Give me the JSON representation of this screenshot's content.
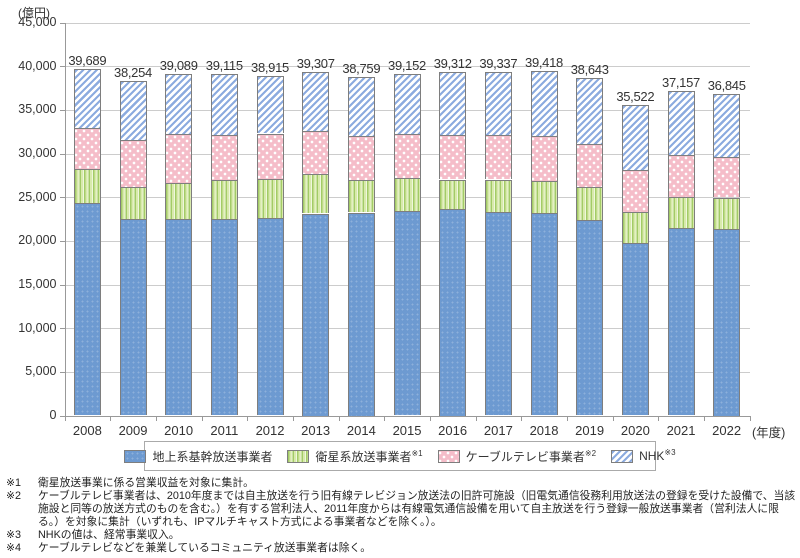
{
  "chart_data": {
    "type": "bar",
    "stacked": true,
    "y_unit_label": "(億円)",
    "x_unit_label": "(年度)",
    "ylim": [
      0,
      45000
    ],
    "ytick_interval": 5000,
    "ytick_labels": [
      "0",
      "5,000",
      "10,000",
      "15,000",
      "20,000",
      "25,000",
      "30,000",
      "35,000",
      "40,000",
      "45,000"
    ],
    "grid": "horizontal",
    "legend_position": "bottom",
    "categories": [
      "2008",
      "2009",
      "2010",
      "2011",
      "2012",
      "2013",
      "2014",
      "2015",
      "2016",
      "2017",
      "2018",
      "2019",
      "2020",
      "2021",
      "2022"
    ],
    "series": [
      {
        "key": "terrestrial",
        "name": "地上系基幹放送事業者",
        "values": [
          24290,
          22460,
          22540,
          22460,
          22580,
          23130,
          23245,
          23435,
          23705,
          23320,
          23210,
          22370,
          19775,
          21495,
          21415
        ]
      },
      {
        "key": "satellite",
        "name": "衛星系放送事業者※1",
        "values": [
          3920,
          3730,
          4110,
          4490,
          4460,
          4535,
          3700,
          3810,
          3315,
          3700,
          3660,
          3810,
          3545,
          3545,
          3545
        ]
      },
      {
        "key": "cable",
        "name": "ケーブルテレビ事業者※2",
        "values": [
          4725,
          5330,
          5560,
          5140,
          5240,
          4955,
          5030,
          4955,
          5110,
          5070,
          5105,
          4955,
          4840,
          4840,
          4650
        ]
      },
      {
        "key": "nhk",
        "name": "NHK※3",
        "values": [
          6754,
          6734,
          6879,
          7025,
          6635,
          6687,
          6784,
          6952,
          7182,
          7247,
          7443,
          7508,
          7362,
          7277,
          7235
        ]
      }
    ],
    "totals": [
      39689,
      38254,
      39089,
      39115,
      38915,
      39307,
      38759,
      39152,
      39312,
      39337,
      39418,
      38643,
      35522,
      37157,
      36845
    ],
    "total_labels": [
      "39,689",
      "38,254",
      "39,089",
      "39,115",
      "38,915",
      "39,307",
      "38,759",
      "39,152",
      "39,312",
      "39,337",
      "39,418",
      "38,643",
      "35,522",
      "37,157",
      "36,845"
    ]
  },
  "colors": {
    "terrestrial": "#6d9ad1",
    "satellite_stripe": "#a3cb66",
    "satellite_bg": "#d8eaac",
    "cable": "#f5bdc9",
    "nhk_stripe": "#8cabdf",
    "segment_border": "#7e7e7e",
    "gridline": "#cccccc",
    "axis": "#999999",
    "text": "#333333"
  },
  "legend": {
    "items": [
      {
        "label": "地上系基幹放送事業者",
        "sup": ""
      },
      {
        "label": "衛星系放送事業者",
        "sup": "※1"
      },
      {
        "label": "ケーブルテレビ事業者",
        "sup": "※2"
      },
      {
        "label": "NHK",
        "sup": "※3"
      }
    ]
  },
  "footnotes": {
    "items": [
      {
        "marker": "※1",
        "text": "衛星放送事業に係る営業収益を対象に集計。"
      },
      {
        "marker": "※2",
        "text": "ケーブルテレビ事業者は、2010年度までは自主放送を行う旧有線テレビジョン放送法の旧許可施設（旧電気通信役務利用放送法の登録を受けた設備で、当該施設と同等の放送方式のものを含む。）を有する営利法人、2011年度からは有線電気通信設備を用いて自主放送を行う登録一般放送事業者（営利法人に限る。）を対象に集計（いずれも、IPマルチキャスト方式による事業者などを除く。）。"
      },
      {
        "marker": "※3",
        "text": "NHKの値は、経常事業収入。"
      },
      {
        "marker": "※4",
        "text": "ケーブルテレビなどを兼業しているコミュニティ放送事業者は除く。"
      }
    ]
  }
}
